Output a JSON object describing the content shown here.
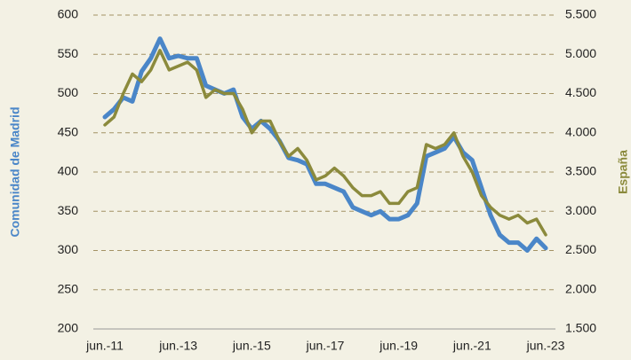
{
  "chart_data": {
    "type": "line",
    "y_label": "Comunidad de Madrid",
    "y2_label": "España",
    "categories": [
      "jun.-11",
      null,
      null,
      null,
      null,
      null,
      null,
      null,
      "jun.-13",
      null,
      null,
      null,
      null,
      null,
      null,
      null,
      "jun.-15",
      null,
      null,
      null,
      null,
      null,
      null,
      null,
      "jun.-17",
      null,
      null,
      null,
      null,
      null,
      null,
      null,
      "jun.-19",
      null,
      null,
      null,
      null,
      null,
      null,
      null,
      "jun.-21",
      null,
      null,
      null,
      null,
      null,
      null,
      null,
      "jun.-23"
    ],
    "series": [
      {
        "name": "Comunidad de Madrid",
        "color": "#4a86c8",
        "axis": "y",
        "values": [
          470,
          480,
          495,
          490,
          528,
          545,
          570,
          545,
          548,
          545,
          545,
          510,
          505,
          500,
          505,
          470,
          455,
          465,
          455,
          440,
          418,
          415,
          410,
          385,
          385,
          380,
          375,
          355,
          350,
          345,
          350,
          340,
          340,
          345,
          360,
          420,
          425,
          430,
          445,
          425,
          415,
          380,
          345,
          320,
          310,
          310,
          300,
          315,
          303
        ]
      },
      {
        "name": "España",
        "color": "#8b8a3c",
        "axis": "y2",
        "values": [
          4100,
          4200,
          4500,
          4750,
          4650,
          4800,
          5050,
          4800,
          4850,
          4900,
          4800,
          4450,
          4550,
          4500,
          4500,
          4300,
          4000,
          4150,
          4150,
          3900,
          3700,
          3800,
          3650,
          3400,
          3450,
          3550,
          3450,
          3300,
          3200,
          3200,
          3250,
          3100,
          3100,
          3250,
          3300,
          3850,
          3800,
          3850,
          4000,
          3700,
          3500,
          3200,
          3050,
          2950,
          2900,
          2950,
          2850,
          2900,
          2700
        ]
      }
    ],
    "ylim": [
      200,
      600
    ],
    "yticks": [
      200,
      250,
      300,
      350,
      400,
      450,
      500,
      550,
      600
    ],
    "y2lim": [
      1500,
      5500
    ],
    "y2ticks": [
      {
        "value": 1500,
        "label": "1.500"
      },
      {
        "value": 2000,
        "label": "2.000"
      },
      {
        "value": 2500,
        "label": "2.500"
      },
      {
        "value": 3000,
        "label": "3.000"
      },
      {
        "value": 3500,
        "label": "3.500"
      },
      {
        "value": 4000,
        "label": "4.000"
      },
      {
        "value": 4500,
        "label": "4.500"
      },
      {
        "value": 5000,
        "label": "5.000"
      },
      {
        "value": 5500,
        "label": "5.500"
      }
    ],
    "grid": true
  }
}
